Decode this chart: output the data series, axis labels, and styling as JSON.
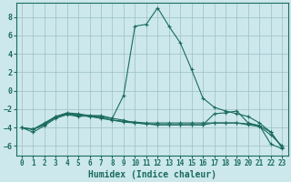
{
  "xlabel": "Humidex (Indice chaleur)",
  "background_color": "#cce8ec",
  "grid_color": "#9bbfc6",
  "line_color": "#1a6b5e",
  "xlim": [
    -0.5,
    23.5
  ],
  "ylim": [
    -7.0,
    9.5
  ],
  "yticks": [
    -6,
    -4,
    -2,
    0,
    2,
    4,
    6,
    8
  ],
  "xticks": [
    0,
    1,
    2,
    3,
    4,
    5,
    6,
    7,
    8,
    9,
    10,
    11,
    12,
    13,
    14,
    15,
    16,
    17,
    18,
    19,
    20,
    21,
    22,
    23
  ],
  "lines": [
    {
      "x": [
        0,
        1,
        2,
        3,
        4,
        5,
        6,
        7,
        8,
        9,
        10,
        11,
        12,
        13,
        14,
        15,
        16,
        17,
        18,
        19,
        20,
        21,
        22,
        23
      ],
      "y": [
        -4.0,
        -4.5,
        -3.8,
        -3.0,
        -2.6,
        -2.8,
        -2.7,
        -2.7,
        -3.0,
        -0.5,
        7.0,
        7.2,
        9.0,
        7.0,
        5.2,
        2.3,
        -0.8,
        -1.8,
        -2.2,
        -2.5,
        -2.8,
        -3.5,
        -4.5,
        -6.2
      ]
    },
    {
      "x": [
        0,
        1,
        2,
        3,
        4,
        5,
        6,
        7,
        8,
        9,
        10,
        11,
        12,
        13,
        14,
        15,
        16,
        17,
        18,
        19,
        20,
        21,
        22,
        23
      ],
      "y": [
        -4.0,
        -4.2,
        -3.5,
        -2.8,
        -2.5,
        -2.7,
        -2.8,
        -3.0,
        -3.2,
        -3.3,
        -3.4,
        -3.5,
        -3.5,
        -3.5,
        -3.5,
        -3.5,
        -3.5,
        -3.5,
        -3.5,
        -3.5,
        -3.6,
        -3.8,
        -5.8,
        -6.3
      ]
    },
    {
      "x": [
        0,
        1,
        2,
        3,
        4,
        5,
        6,
        7,
        8,
        9,
        10,
        11,
        12,
        13,
        14,
        15,
        16,
        17,
        18,
        19,
        20,
        21,
        22,
        23
      ],
      "y": [
        -4.0,
        -4.2,
        -3.6,
        -2.9,
        -2.5,
        -2.6,
        -2.8,
        -2.9,
        -3.2,
        -3.4,
        -3.5,
        -3.6,
        -3.7,
        -3.7,
        -3.7,
        -3.7,
        -3.7,
        -3.5,
        -3.5,
        -3.5,
        -3.7,
        -3.9,
        -4.8,
        -6.0
      ]
    },
    {
      "x": [
        0,
        1,
        2,
        3,
        4,
        5,
        6,
        7,
        8,
        9,
        10,
        11,
        12,
        13,
        14,
        15,
        16,
        17,
        18,
        19,
        20,
        21,
        22,
        23
      ],
      "y": [
        -4.0,
        -4.2,
        -3.7,
        -2.8,
        -2.4,
        -2.5,
        -2.7,
        -2.8,
        -3.0,
        -3.2,
        -3.5,
        -3.6,
        -3.7,
        -3.7,
        -3.7,
        -3.7,
        -3.7,
        -2.5,
        -2.4,
        -2.2,
        -3.5,
        -3.8,
        -4.5,
        -6.2
      ]
    }
  ]
}
